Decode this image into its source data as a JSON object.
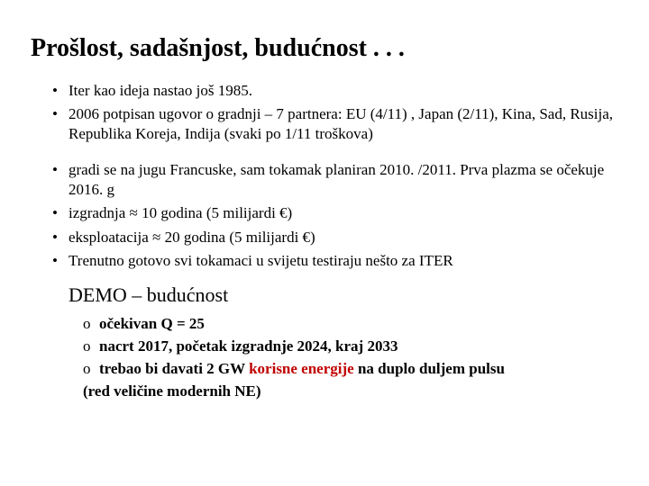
{
  "title": "Prošlost, sadašnjost, budućnost . . .",
  "bullets_a": [
    "Iter kao ideja nastao još  1985.",
    "2006 potpisan ugovor o gradnji – 7 partnera:  EU (4/11) , Japan (2/11), Kina, Sad, Rusija, Republika Koreja, Indija (svaki po 1/11 troškova)"
  ],
  "bullets_b": [
    "gradi se na jugu Francuske,  sam tokamak planiran 2010. /2011. Prva plazma se očekuje 2016. g",
    "izgradnja ≈ 10 godina (5 milijardi €)",
    " eksploatacija ≈ 20 godina (5 milijardi €)",
    "Trenutno gotovo svi tokamaci u svijetu testiraju nešto za ITER"
  ],
  "demo_title": "DEMO – budućnost",
  "demo_items": {
    "i1": "očekivan Q = 25",
    "i2": "nacrt 2017, početak izgradnje 2024, kraj 2033",
    "i3_a": "trebao bi davati 2 GW ",
    "i3_accent": "korisne energije",
    "i3_b": " na duplo duljem pulsu"
  },
  "demo_tail": "(red veličine modernih NE)",
  "colors": {
    "text": "#000000",
    "accent": "#c00000",
    "background": "#ffffff"
  }
}
